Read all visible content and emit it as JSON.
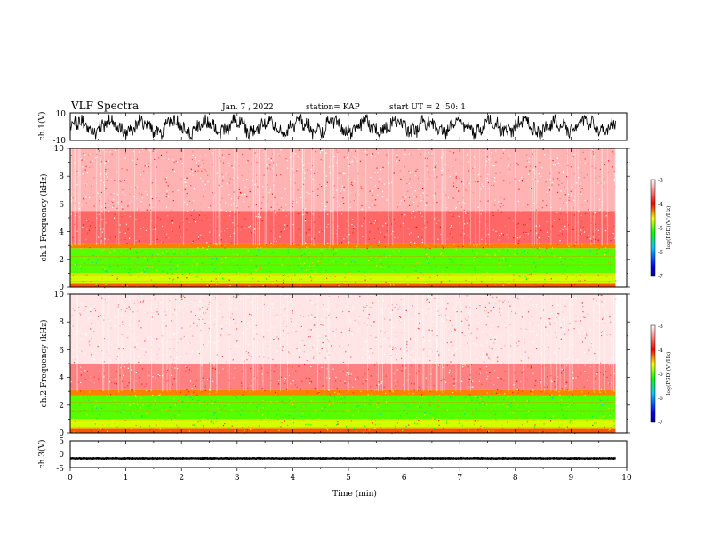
{
  "header": {
    "title": "VLF Spectra",
    "date": "Jan. 7 , 2022",
    "station": "station= KAP",
    "start": "start UT = 2 :50: 1"
  },
  "chart_data": [
    {
      "type": "line",
      "panel": "ch1-waveform",
      "ylabel": "ch.1(V)",
      "ylim": [
        -10,
        10
      ],
      "y_tick_labels": [
        "10",
        "-10"
      ],
      "xlim": [
        0,
        10
      ]
    },
    {
      "type": "heatmap",
      "panel": "ch1-spectrogram",
      "ylabel": "ch.1 Frequency (kHz)",
      "ylim": [
        0,
        10
      ],
      "y_tick_labels": [
        "0",
        "2",
        "4",
        "6",
        "8",
        "10"
      ],
      "xlim": [
        0,
        10
      ],
      "data_end_min": 9.8,
      "colorbar": {
        "label": "log(PSD)(V²/Hz)",
        "range": [
          -7,
          -3
        ],
        "tick_labels": [
          "-3",
          "-4",
          "-5",
          "-6",
          "-7"
        ]
      },
      "bands": [
        {
          "fmin": 0.0,
          "fmax": 0.3,
          "level": -4.2
        },
        {
          "fmin": 0.3,
          "fmax": 1.0,
          "level": -4.7
        },
        {
          "fmin": 1.0,
          "fmax": 2.8,
          "level": -5.0
        },
        {
          "fmin": 2.8,
          "fmax": 3.2,
          "level": -4.3
        },
        {
          "fmin": 3.2,
          "fmax": 5.5,
          "level": -3.6
        },
        {
          "fmin": 5.5,
          "fmax": 10.0,
          "level": -3.3
        }
      ]
    },
    {
      "type": "heatmap",
      "panel": "ch2-spectrogram",
      "ylabel": "ch.2 Frequency (kHz)",
      "ylim": [
        0,
        10
      ],
      "y_tick_labels": [
        "0",
        "2",
        "4",
        "6",
        "8",
        "10"
      ],
      "xlim": [
        0,
        10
      ],
      "data_end_min": 9.8,
      "colorbar": {
        "label": "log(PSD)(V²/Hz)",
        "range": [
          -7,
          -3
        ],
        "tick_labels": [
          "-3",
          "-4",
          "-5",
          "-6",
          "-7"
        ]
      },
      "bands": [
        {
          "fmin": 0.0,
          "fmax": 0.3,
          "level": -4.2
        },
        {
          "fmin": 0.3,
          "fmax": 1.0,
          "level": -4.7
        },
        {
          "fmin": 1.0,
          "fmax": 2.7,
          "level": -5.0
        },
        {
          "fmin": 2.7,
          "fmax": 3.1,
          "level": -4.3
        },
        {
          "fmin": 3.1,
          "fmax": 5.0,
          "level": -3.5
        },
        {
          "fmin": 5.0,
          "fmax": 10.0,
          "level": -3.1
        }
      ]
    },
    {
      "type": "line",
      "panel": "ch3-waveform",
      "ylabel": "ch.3(V)",
      "ylim": [
        -5,
        5
      ],
      "y_tick_labels": [
        "5",
        "0",
        "-5"
      ],
      "xlim": [
        0,
        10
      ],
      "xlabel": "Time (min)",
      "x_tick_labels": [
        "0",
        "1",
        "2",
        "3",
        "4",
        "5",
        "6",
        "7",
        "8",
        "9",
        "10"
      ],
      "signal_level": -1.5,
      "signal_amplitude": 0.5
    }
  ]
}
